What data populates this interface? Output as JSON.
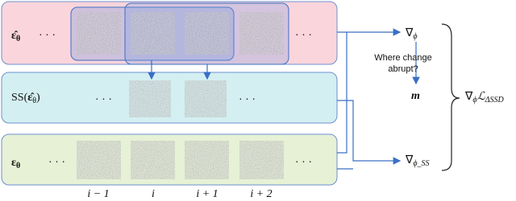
{
  "rows": [
    {
      "symbol": "ε̂",
      "subscript": "θ"
    },
    {
      "prefix": "SS(",
      "symbol": "ε̂",
      "subscript": "θ",
      "suffix": ")"
    },
    {
      "symbol": "ε",
      "subscript": "θ"
    }
  ],
  "ellipsis": "· · ·",
  "outputs": {
    "grad": {
      "symbol": "∇",
      "subscript": "ϕ"
    },
    "question": [
      "Where change",
      "abrupt?"
    ],
    "mask": "m",
    "grad_ss": {
      "symbol": "∇",
      "subscript": "ϕ_SS"
    },
    "loss": {
      "symbol": "∇",
      "subscript": "ϕ",
      "term": "ℒ",
      "term_subscript": "ΔSSD"
    }
  },
  "index_labels": [
    "i − 1",
    "i",
    "i + 1",
    "i + 2"
  ]
}
